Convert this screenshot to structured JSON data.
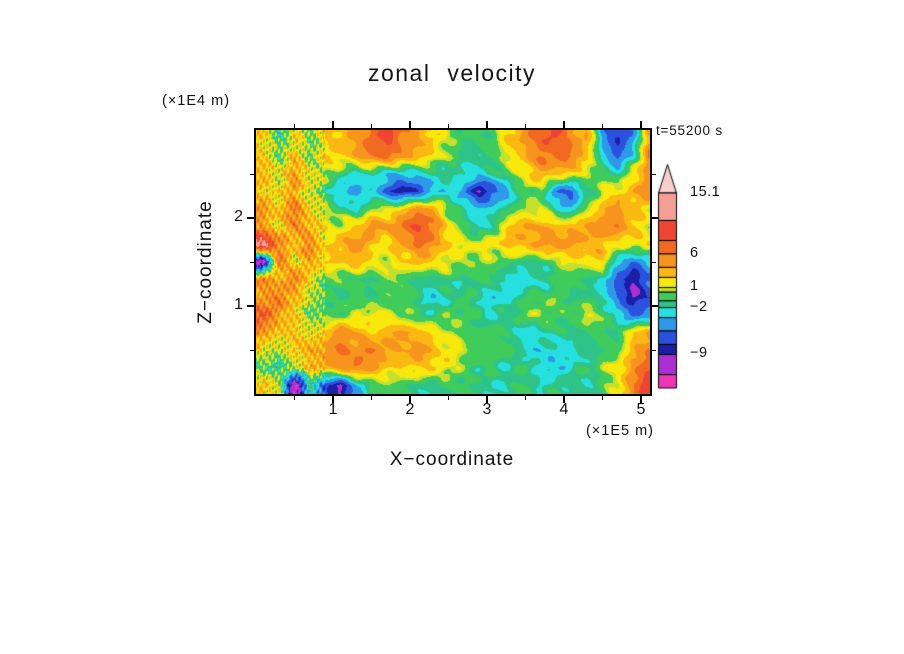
{
  "chart_data": {
    "type": "heatmap",
    "title": "zonal velocity",
    "timestamp": "t=55200 s",
    "xlabel": "X−coordinate",
    "ylabel": "Z−coordinate",
    "x_unit": "(×1E5 m)",
    "y_unit": "(×1E4 m)",
    "x_range": [
      0,
      5.12
    ],
    "y_range": [
      0,
      3.0
    ],
    "x_ticks": {
      "major": [
        1,
        2,
        3,
        4,
        5
      ],
      "minor": [
        0.5,
        1.5,
        2.5,
        3.5,
        4.5
      ],
      "labels": [
        "1",
        "2",
        "3",
        "4",
        "5"
      ]
    },
    "y_ticks": {
      "major": [
        1,
        2
      ],
      "minor": [
        0.5,
        1.5,
        2.5
      ],
      "labels": [
        "1",
        "2"
      ]
    },
    "colorbar": {
      "levels": [
        15.1,
        11,
        8,
        6,
        4,
        2.5,
        1,
        0.3,
        -1,
        -2,
        -3.5,
        -5.5,
        -7.5,
        -9,
        -12
      ],
      "vmin": -14,
      "colors": [
        "#F8CFCB",
        "#F49E96",
        "#EE4533",
        "#F26A22",
        "#F7941D",
        "#FBB812",
        "#F8E80C",
        "#C5E02C",
        "#3FCC5A",
        "#2EC489",
        "#25E0DE",
        "#2D99E8",
        "#2A52DE",
        "#1A1FA6",
        "#AC2FD4",
        "#EE36B5"
      ],
      "ticks": [
        {
          "value": 15.1,
          "label": "15.1"
        },
        {
          "value": 6,
          "label": "6"
        },
        {
          "value": 1,
          "label": "1"
        },
        {
          "value": -2,
          "label": "−2"
        },
        {
          "value": -9,
          "label": "−9"
        }
      ]
    },
    "grid": {
      "x0": 0.1,
      "dx": 0.2,
      "nx": 26,
      "y_top": 2.9,
      "dy": 0.2,
      "ny": 15,
      "values": [
        [
          2,
          -1,
          2,
          0,
          2,
          3,
          5,
          7,
          9,
          6,
          4,
          3,
          1,
          -1,
          -1,
          0,
          3,
          5,
          7,
          8,
          5,
          4,
          -4,
          -8,
          -5,
          4
        ],
        [
          3,
          -1,
          4,
          0,
          3,
          2,
          4,
          6,
          7,
          5,
          3,
          2,
          0,
          -1,
          -2,
          -1,
          1,
          4,
          6,
          7,
          6,
          3,
          -2,
          -6,
          -3,
          6
        ],
        [
          4,
          1,
          5,
          2,
          1,
          -1,
          -3,
          -2,
          -3,
          -4,
          -3,
          -2,
          -2,
          -2,
          -3,
          -2,
          0,
          2,
          4,
          3,
          2,
          1,
          0,
          -2,
          2,
          5
        ],
        [
          3,
          2,
          4,
          1,
          -1,
          -3,
          -4,
          -3,
          -6,
          -9,
          -7,
          -4,
          -3,
          -5,
          -9,
          -7,
          -3,
          -1,
          0,
          -5,
          -6,
          -2,
          1,
          2,
          4,
          6
        ],
        [
          5,
          3,
          6,
          2,
          1,
          -1,
          -2,
          0,
          1,
          3,
          6,
          4,
          0,
          -2,
          -3,
          -2,
          -1,
          0,
          1,
          -2,
          -3,
          0,
          3,
          5,
          3,
          2
        ],
        [
          4,
          2,
          5,
          3,
          2,
          1,
          3,
          5,
          4,
          7,
          9,
          6,
          2,
          -1,
          -2,
          -1,
          3,
          4,
          4,
          3,
          4,
          4,
          5,
          6,
          3,
          1
        ],
        [
          13,
          5,
          3,
          6,
          2,
          3,
          5,
          3,
          2,
          4,
          6,
          5,
          3,
          2,
          1,
          2,
          3,
          4,
          5,
          5,
          4,
          4,
          3,
          2,
          1,
          2
        ],
        [
          -12,
          6,
          2,
          4,
          3,
          2,
          3,
          2,
          1,
          2,
          3,
          2,
          1,
          1,
          0,
          0,
          -1,
          -1,
          -1,
          0,
          1,
          2,
          3,
          -3,
          -6,
          -4
        ],
        [
          6,
          3,
          7,
          2,
          -1,
          0,
          -1,
          -1,
          0,
          -1,
          -2,
          -1,
          -1,
          -2,
          -1,
          -1,
          -2,
          -3,
          -2,
          -1,
          0,
          -1,
          -2,
          -7,
          -9,
          -6
        ],
        [
          4,
          7,
          3,
          1,
          -1,
          -1,
          0,
          -1,
          -1,
          0,
          -1,
          -3,
          -2,
          -1,
          -2,
          -3,
          -2,
          -1,
          -1,
          0,
          -1,
          -1,
          -2,
          -6,
          -9,
          -7
        ],
        [
          8,
          5,
          2,
          0,
          -1,
          0,
          1,
          2,
          1,
          0,
          -1,
          -1,
          0,
          -1,
          -1,
          -2,
          -1,
          0,
          0,
          -1,
          0,
          1,
          0,
          -3,
          -6,
          -4
        ],
        [
          5,
          2,
          3,
          2,
          3,
          5,
          4,
          2,
          4,
          5,
          3,
          2,
          1,
          0,
          -1,
          -1,
          -2,
          -3,
          -2,
          -1,
          -2,
          -1,
          0,
          -1,
          2,
          4
        ],
        [
          2,
          0,
          3,
          4,
          5,
          6,
          5,
          6,
          5,
          4,
          5,
          3,
          2,
          1,
          0,
          -1,
          -1,
          -2,
          -3,
          -2,
          -3,
          -2,
          -1,
          0,
          3,
          6
        ],
        [
          0,
          -2,
          1,
          3,
          4,
          5,
          6,
          4,
          3,
          2,
          3,
          2,
          1,
          0,
          -1,
          -1,
          -2,
          -1,
          -2,
          -3,
          -2,
          -1,
          0,
          2,
          5,
          8
        ],
        [
          3,
          2,
          -13,
          -2,
          -7,
          -9,
          -4,
          -1,
          0,
          -1,
          -1,
          -2,
          -1,
          -1,
          -1,
          -2,
          -1,
          -1,
          -2,
          -1,
          -1,
          -2,
          -1,
          1,
          6,
          10
        ]
      ]
    }
  }
}
